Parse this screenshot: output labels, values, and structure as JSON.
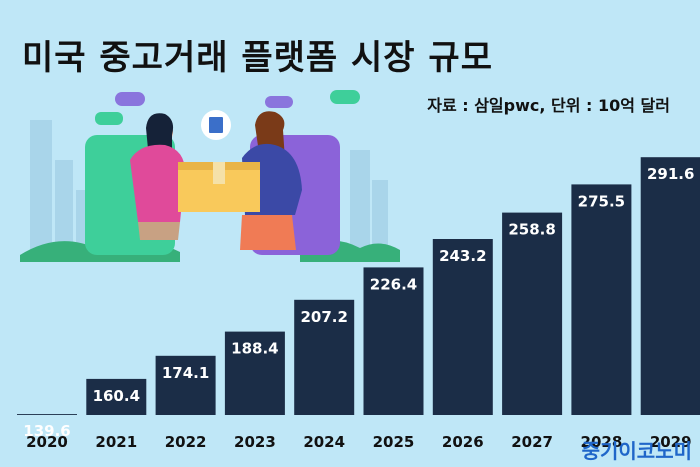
{
  "title": "미국 중고거래 플랫폼 시장 규모",
  "source_note": "자료 : 삼일pwc, 단위 : 10억 달러",
  "brand": "중기이코노미",
  "colors": {
    "background": "#bfe7f7",
    "bar": "#1b2d47",
    "bar_label": "#ffffff",
    "brand": "#1f66c9"
  },
  "chart_data": {
    "type": "bar",
    "title": "미국 중고거래 플랫폼 시장 규모",
    "unit": "10억 달러",
    "categories": [
      "2020",
      "2021",
      "2022",
      "2023",
      "2024",
      "2025",
      "2026",
      "2027",
      "2028",
      "2029"
    ],
    "values": [
      139.6,
      160.4,
      174.1,
      188.4,
      207.2,
      226.4,
      243.2,
      258.8,
      275.5,
      291.6
    ],
    "value_labels": [
      "139.6",
      "160.4",
      "174.1",
      "188.4",
      "207.2",
      "226.4",
      "243.2",
      "258.8",
      "275.5",
      "291.6"
    ],
    "xlabel": "",
    "ylabel": "",
    "grid": false,
    "legend": "none"
  }
}
